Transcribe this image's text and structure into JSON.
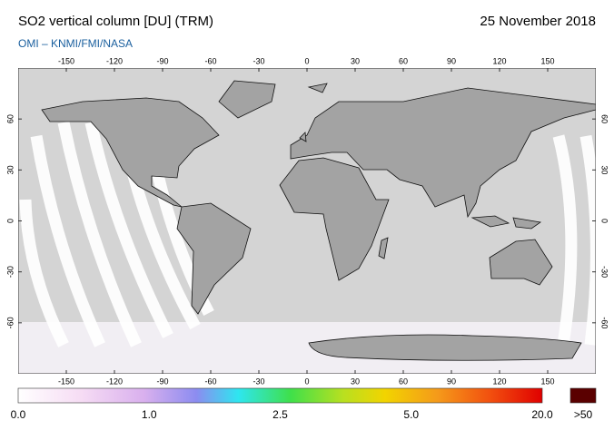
{
  "header": {
    "title": "SO2 vertical column [DU] (TRM)",
    "date": "25 November 2018",
    "subtitle": "OMI  –  KNMI/FMI/NASA"
  },
  "map": {
    "lon_ticks": [
      -150,
      -120,
      -90,
      -60,
      -30,
      0,
      30,
      60,
      90,
      120,
      150
    ],
    "lat_ticks": [
      60,
      30,
      0,
      -30,
      -60
    ]
  },
  "colorbar": {
    "labels": [
      "0.0",
      "1.0",
      "2.5",
      "5.0",
      "20.0"
    ],
    "overflow_label": ">50"
  }
}
